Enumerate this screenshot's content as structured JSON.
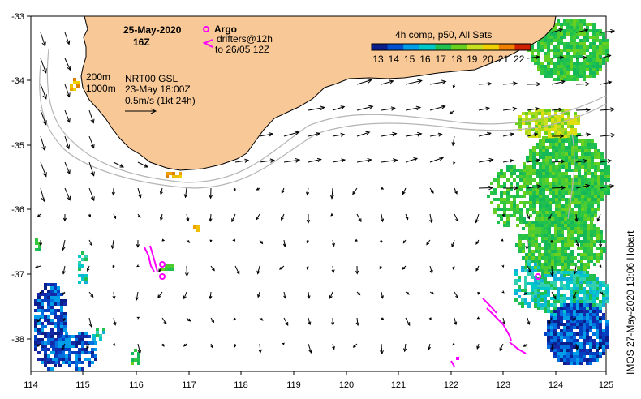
{
  "header": {
    "date": "25-May-2020",
    "hour": "16Z",
    "argo_label": "Argo",
    "drifters_line1": "drifters@12h",
    "drifters_line2": "to 26/05 12Z"
  },
  "legend": {
    "title": "4h comp, p50, All Sats",
    "ticks": [
      "13",
      "14",
      "15",
      "16",
      "17",
      "18",
      "19",
      "20",
      "21",
      "22"
    ],
    "colors": [
      "#0b1f8c",
      "#0050d0",
      "#009ee8",
      "#00c8c8",
      "#20c050",
      "#6ad020",
      "#c8e020",
      "#f0d000",
      "#f08000",
      "#d02000"
    ]
  },
  "info": {
    "depth_200": "200m",
    "depth_1000": "1000m",
    "product": "NRT00 GSL",
    "datetime": "23-May 18:00Z",
    "scale": "0.5m/s (1kt 24h)"
  },
  "axes": {
    "lon_ticks": [
      "114",
      "115",
      "116",
      "117",
      "118",
      "119",
      "120",
      "121",
      "122",
      "123",
      "124",
      "125"
    ],
    "lat_ticks": [
      "-33",
      "-34",
      "-35",
      "-36",
      "-37",
      "-38"
    ]
  },
  "credit": "IMOS 27-May-2020 13:06 Hobart",
  "colors": {
    "land": "#f8c896",
    "coast": "#000000",
    "argo": "#ff00ff",
    "drifter": "#ff00ff",
    "isobath": "#b4b4b4"
  }
}
